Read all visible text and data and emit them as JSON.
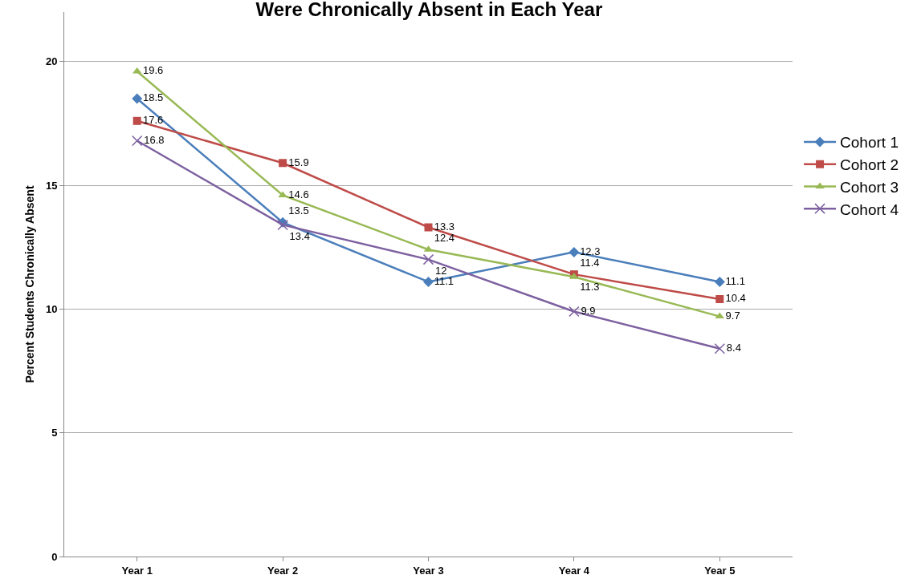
{
  "chart_data": {
    "type": "line",
    "title": "Were Chronically Absent in Each Year",
    "ylabel": "Percent Students Chronically Absent",
    "categories": [
      "Year 1",
      "Year 2",
      "Year 3",
      "Year 4",
      "Year 5"
    ],
    "series": [
      {
        "name": "Cohort 1",
        "color": "#4a7ebb",
        "marker": "diamond",
        "values": [
          18.5,
          13.5,
          11.1,
          12.3,
          11.1
        ]
      },
      {
        "name": "Cohort 2",
        "color": "#be4b48",
        "marker": "square",
        "values": [
          17.6,
          15.9,
          13.3,
          11.4,
          10.4
        ]
      },
      {
        "name": "Cohort 3",
        "color": "#98b954",
        "marker": "triangle",
        "values": [
          19.6,
          14.6,
          12.4,
          11.3,
          9.7
        ]
      },
      {
        "name": "Cohort 4",
        "color": "#7d60a0",
        "marker": "cross",
        "values": [
          16.8,
          13.4,
          12,
          9.9,
          8.4
        ]
      }
    ],
    "ylim": [
      0,
      22
    ],
    "yticks": [
      0,
      5,
      10,
      15,
      20
    ],
    "grid": "y",
    "legend": "right",
    "data_labels": true
  }
}
